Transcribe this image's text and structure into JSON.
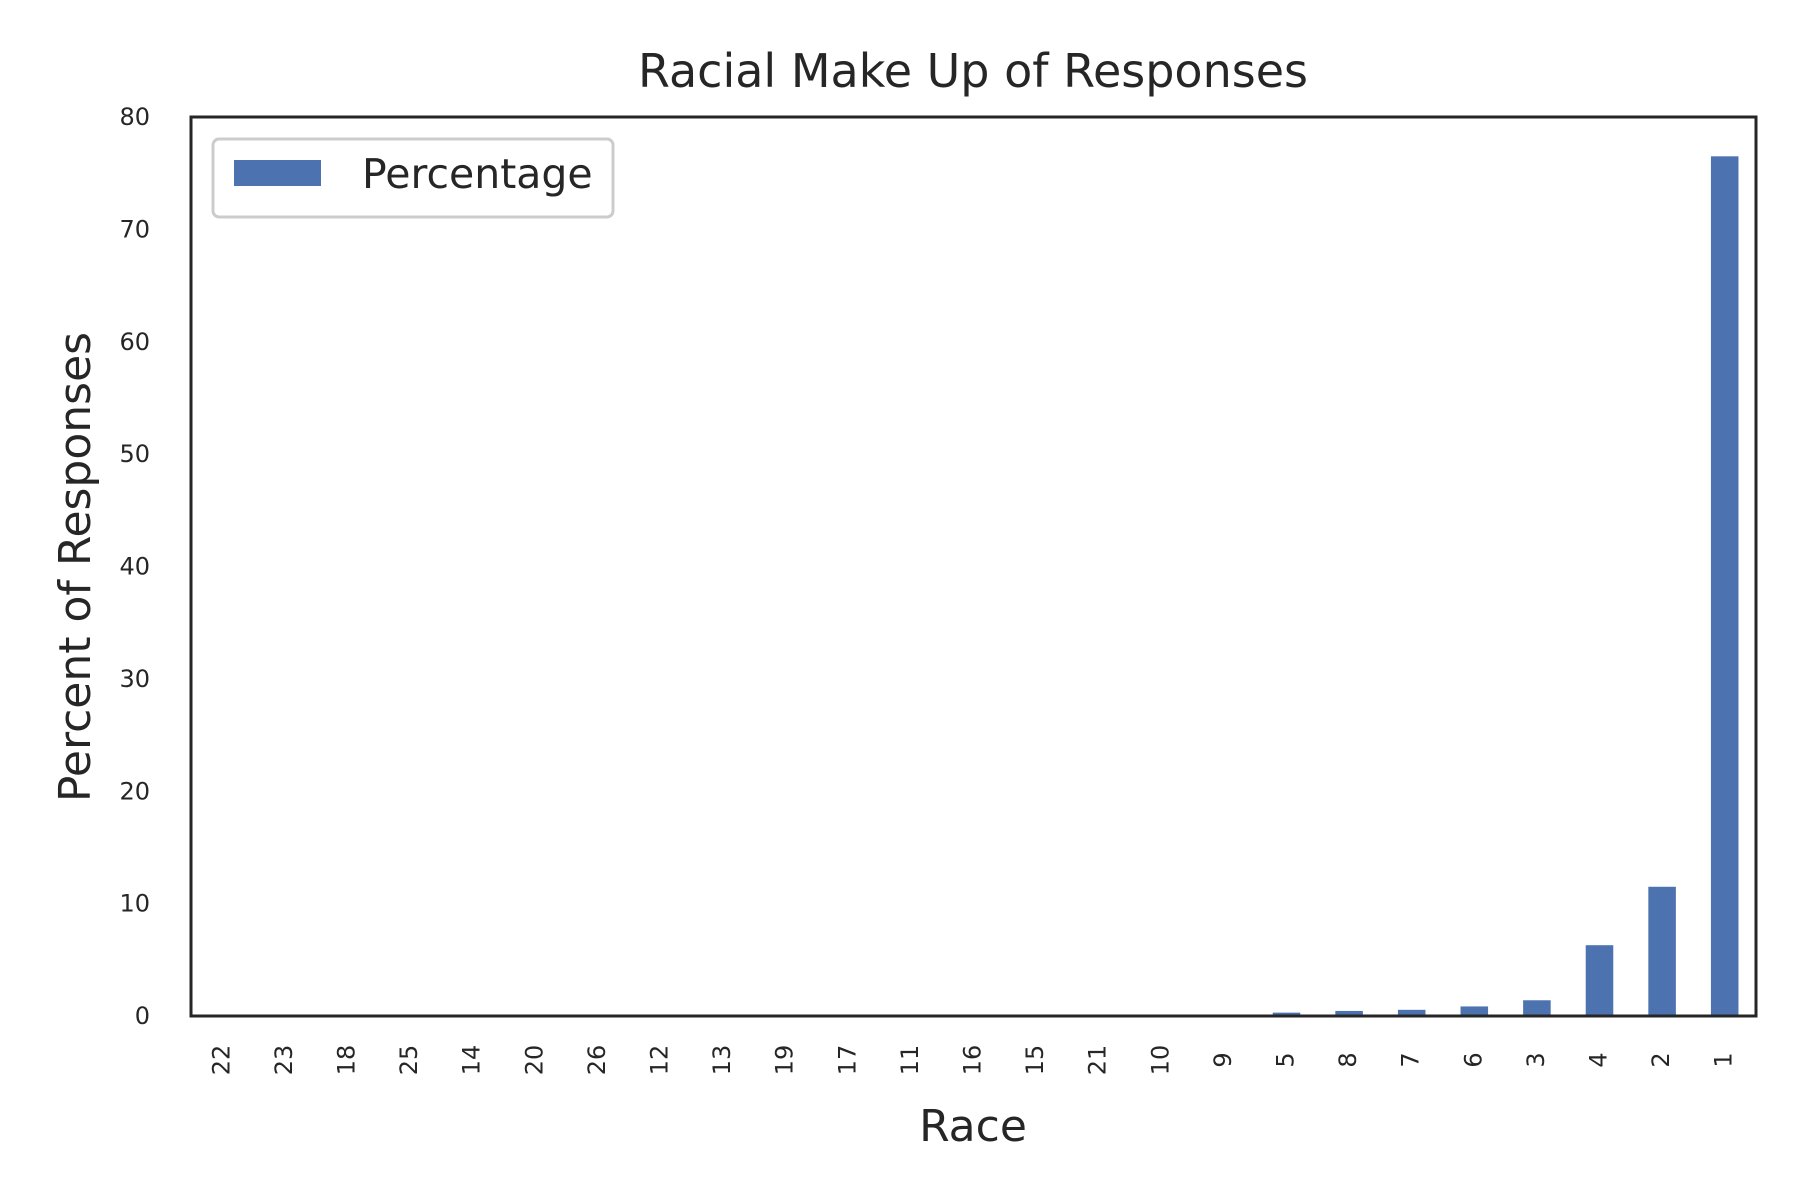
{
  "chart_data": {
    "type": "bar",
    "title": "Racial Make Up of Responses",
    "xlabel": "Race",
    "ylabel": "Percent of Responses",
    "categories": [
      "22",
      "23",
      "18",
      "25",
      "14",
      "20",
      "26",
      "12",
      "13",
      "19",
      "17",
      "11",
      "16",
      "15",
      "21",
      "10",
      "9",
      "5",
      "8",
      "7",
      "6",
      "3",
      "4",
      "2",
      "1"
    ],
    "series": [
      {
        "name": "Percentage",
        "values": [
          0.02,
          0.02,
          0.02,
          0.03,
          0.03,
          0.03,
          0.03,
          0.04,
          0.04,
          0.05,
          0.05,
          0.05,
          0.06,
          0.06,
          0.07,
          0.08,
          0.1,
          0.3,
          0.45,
          0.55,
          0.85,
          1.4,
          6.3,
          11.5,
          76.5
        ]
      }
    ],
    "ylim": [
      0,
      80
    ],
    "yticks": [
      0,
      10,
      20,
      30,
      40,
      50,
      60,
      70,
      80
    ],
    "grid": false,
    "legend_position": "top-left",
    "bar_color": "#4c72b0",
    "axis_color": "#262626",
    "legend_border_color": "#cccccc"
  }
}
